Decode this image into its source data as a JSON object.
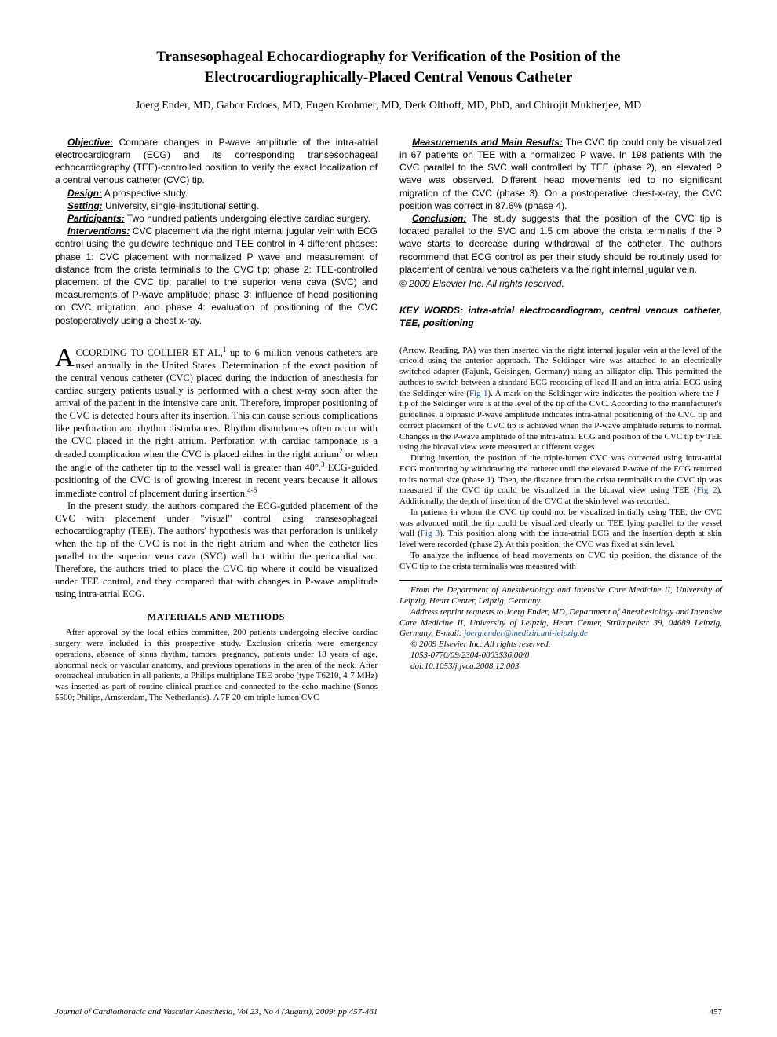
{
  "title": "Transesophageal Echocardiography for Verification of the Position of the Electrocardiographically-Placed Central Venous Catheter",
  "authors": "Joerg Ender, MD, Gabor Erdoes, MD, Eugen Krohmer, MD, Derk Olthoff, MD, PhD, and Chirojit Mukherjee, MD",
  "abstract": {
    "left": {
      "objective_label": "Objective:",
      "objective": "Compare changes in P-wave amplitude of the intra-atrial electrocardiogram (ECG) and its corresponding transesophageal echocardiography (TEE)-controlled position to verify the exact localization of a central venous catheter (CVC) tip.",
      "design_label": "Design:",
      "design": "A prospective study.",
      "setting_label": "Setting:",
      "setting": "University, single-institutional setting.",
      "participants_label": "Participants:",
      "participants": "Two hundred patients undergoing elective cardiac surgery.",
      "interventions_label": "Interventions:",
      "interventions": "CVC placement via the right internal jugular vein with ECG control using the guidewire technique and TEE control in 4 different phases: phase 1: CVC placement with normalized P wave and measurement of distance from the crista terminalis to the CVC tip; phase 2: TEE-controlled placement of the CVC tip; parallel to the superior vena cava (SVC) and measurements of P-wave amplitude; phase 3: influence of head positioning on CVC migration; and phase 4: evaluation of positioning of the CVC postoperatively using a chest x-ray."
    },
    "right": {
      "results_label": "Measurements and Main Results:",
      "results": "The CVC tip could only be visualized in 67 patients on TEE with a normalized P wave. In 198 patients with the CVC parallel to the SVC wall controlled by TEE (phase 2), an elevated P wave was observed. Different head movements led to no significant migration of the CVC (phase 3). On a postoperative chest-x-ray, the CVC position was correct in 87.6% (phase 4).",
      "conclusion_label": "Conclusion:",
      "conclusion": "The study suggests that the position of the CVC tip is located parallel to the SVC and 1.5 cm above the crista terminalis if the P wave starts to decrease during withdrawal of the catheter. The authors recommend that ECG control as per their study should be routinely used for placement of central venous catheters via the right internal jugular vein.",
      "copyright": "© 2009 Elsevier Inc. All rights reserved.",
      "keywords": "KEY WORDS: intra-atrial electrocardiogram, central venous catheter, TEE, positioning"
    }
  },
  "body": {
    "left": {
      "p1_lead": "CCORDING TO COLLIER ET AL,",
      "p1_ref": "1",
      "p1_rest": " up to 6 million venous catheters are used annually in the United States. Determination of the exact position of the central venous catheter (CVC) placed during the induction of anesthesia for cardiac surgery patients usually is performed with a chest x-ray soon after the arrival of the patient in the intensive care unit. Therefore, improper positioning of the CVC is detected hours after its insertion. This can cause serious complications like perforation and rhythm disturbances. Rhythm disturbances often occur with the CVC placed in the right atrium. Perforation with cardiac tamponade is a dreaded complication when the CVC is placed either in the right atrium",
      "p1_ref2": "2",
      "p1_rest2": " or when the angle of the catheter tip to the vessel wall is greater than 40°.",
      "p1_ref3": "3",
      "p1_rest3": " ECG-guided positioning of the CVC is of growing interest in recent years because it allows immediate control of placement during insertion.",
      "p1_ref4": "4-6",
      "p2": "In the present study, the authors compared the ECG-guided placement of the CVC with placement under \"visual\" control using transesophageal echocardiography (TEE). The authors' hypothesis was that perforation is unlikely when the tip of the CVC is not in the right atrium and when the catheter lies parallel to the superior vena cava (SVC) wall but within the pericardial sac. Therefore, the authors tried to place the CVC tip where it could be visualized under TEE control, and they compared that with changes in P-wave amplitude using intra-atrial ECG.",
      "methods_head": "MATERIALS AND METHODS",
      "methods_p1": "After approval by the local ethics committee, 200 patients undergoing elective cardiac surgery were included in this prospective study. Exclusion criteria were emergency operations, absence of sinus rhythm, tumors, pregnancy, patients under 18 years of age, abnormal neck or vascular anatomy, and previous operations in the area of the neck. After orotracheal intubation in all patients, a Philips multiplane TEE probe (type T6210, 4-7 MHz) was inserted as part of routine clinical practice and connected to the echo machine (Sonos 5500; Philips, Amsterdam, The Netherlands). A 7F 20-cm triple-lumen CVC"
    },
    "right": {
      "p1a": "(Arrow, Reading, PA) was then inserted via the right internal jugular vein at the level of the cricoid using the anterior approach. The Seldinger wire was attached to an electrically switched adapter (Pajunk, Geisingen, Germany) using an alligator clip. This permitted the authors to switch between a standard ECG recording of lead II and an intra-atrial ECG using the Seldinger wire (",
      "fig1": "Fig 1",
      "p1b": "). A mark on the Seldinger wire indicates the position where the J-tip of the Seldinger wire is at the level of the tip of the CVC. According to the manufacturer's guidelines, a biphasic P-wave amplitude indicates intra-atrial positioning of the CVC tip and correct placement of the CVC tip is achieved when the P-wave amplitude returns to normal. Changes in the P-wave amplitude of the intra-atrial ECG and position of the CVC tip by TEE using the bicaval view were measured at different stages.",
      "p2a": "During insertion, the position of the triple-lumen CVC was corrected using intra-atrial ECG monitoring by withdrawing the catheter until the elevated P-wave of the ECG returned to its normal size (phase 1). Then, the distance from the crista terminalis to the CVC tip was measured if the CVC tip could be visualized in the bicaval view using TEE (",
      "fig2": "Fig 2",
      "p2b": "). Additionally, the depth of insertion of the CVC at the skin level was recorded.",
      "p3a": "In patients in whom the CVC tip could not be visualized initially using TEE, the CVC was advanced until the tip could be visualized clearly on TEE lying parallel to the vessel wall (",
      "fig3": "Fig 3",
      "p3b": "). This position along with the intra-atrial ECG and the insertion depth at skin level were recorded (phase 2). At this position, the CVC was fixed at skin level.",
      "p4": "To analyze the influence of head movements on CVC tip position, the distance of the CVC tip to the crista terminalis was measured with",
      "affil1": "From the Department of Anesthesiology and Intensive Care Medicine II, University of Leipzig, Heart Center, Leipzig, Germany.",
      "affil2a": "Address reprint requests to Joerg Ender, MD, Department of Anesthesiology and Intensive Care Medicine II, University of Leipzig, Heart Center, Strümpellstr 39, 04689 Leipzig, Germany. E-mail: ",
      "email": "joerg.ender@medizin.uni-leipzig.de",
      "affil3": "© 2009 Elsevier Inc. All rights reserved.",
      "affil4": "1053-0770/09/2304-0003$36.00/0",
      "affil5": "doi:10.1053/j.jvca.2008.12.003"
    }
  },
  "footer": {
    "journal": "Journal of Cardiothoracic and Vascular Anesthesia, Vol 23, No 4 (August), 2009: pp 457-461",
    "page": "457"
  },
  "colors": {
    "text": "#000000",
    "link": "#1a4fa0",
    "background": "#ffffff"
  },
  "typography": {
    "title_fontsize_pt": 15,
    "authors_fontsize_pt": 11,
    "abstract_fontsize_pt": 9,
    "body_fontsize_pt": 9.5,
    "methods_fontsize_pt": 8.5,
    "footer_fontsize_pt": 8.5
  }
}
